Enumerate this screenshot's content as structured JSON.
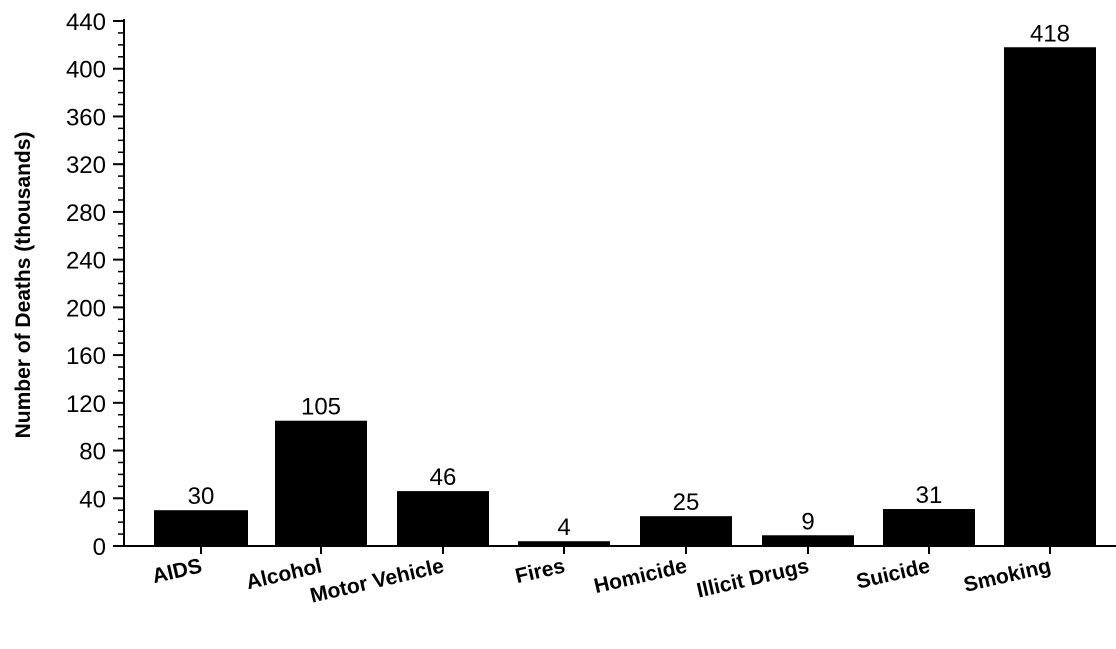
{
  "chart_data": {
    "type": "bar",
    "title": "",
    "xlabel": "",
    "ylabel": "Number of Deaths (thousands)",
    "categories": [
      "AIDS",
      "Alcohol",
      "Motor Vehicle",
      "Fires",
      "Homicide",
      "Illicit Drugs",
      "Suicide",
      "Smoking"
    ],
    "values": [
      30,
      105,
      46,
      4,
      25,
      9,
      31,
      418
    ],
    "value_labels": [
      "30",
      "105",
      "46",
      "4",
      "25",
      "9",
      "31",
      "418"
    ],
    "ylim": [
      0,
      440
    ],
    "yticks": [
      "0",
      "40",
      "80",
      "120",
      "160",
      "200",
      "240",
      "280",
      "320",
      "360",
      "400",
      "440"
    ],
    "grid": false,
    "legend": "none",
    "bar_color": "#000000"
  }
}
